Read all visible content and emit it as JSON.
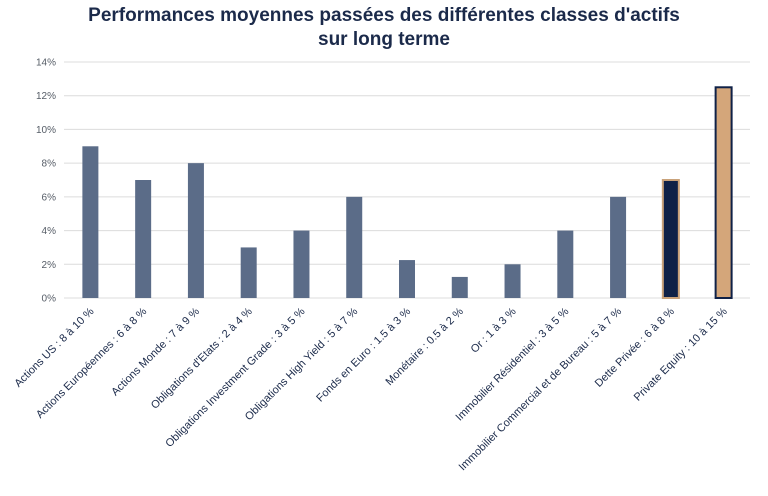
{
  "chart_data": {
    "type": "bar",
    "title_line1": "Performances moyennes passées des différentes classes d'actifs",
    "title_line2": "sur long terme",
    "ylim": [
      0,
      14
    ],
    "yticks": [
      "0%",
      "2%",
      "4%",
      "6%",
      "8%",
      "10%",
      "12%",
      "14%"
    ],
    "categories": [
      "Actions US : 8 à 10 %",
      "Actions Européennes : 6 à 8 %",
      "Actions Monde : 7 à 9 %",
      "Obligations d'Etats : 2 à 4 %",
      "Obligations Investment Grade : 3 à 5 %",
      "Obligations High Yield : 5 à 7 %",
      "Fonds en Euro : 1.5 à 3 %",
      "Monétaire : 0.5 à 2 %",
      "Or : 1 à 3 %",
      "Immobilier Résidentiel : 3 à 5 %",
      "Immobilier Commercial et de Bureau : 5 à 7 %",
      "Dette Privée : 6 à 8 %",
      "Private Equity : 10 à 15 %"
    ],
    "values": [
      9,
      7,
      8,
      3,
      4,
      6,
      2.25,
      1.25,
      2,
      4,
      6,
      7,
      12.5
    ],
    "grid": true,
    "colors": {
      "default_bar": "#5b6c88",
      "dette_privee_fill": "#0f2147",
      "dette_privee_border": "#c9a27a",
      "private_equity_fill": "#d4a67a",
      "private_equity_border": "#0f2147",
      "grid": "#dcdcdc",
      "title": "#1b2a4a"
    }
  }
}
